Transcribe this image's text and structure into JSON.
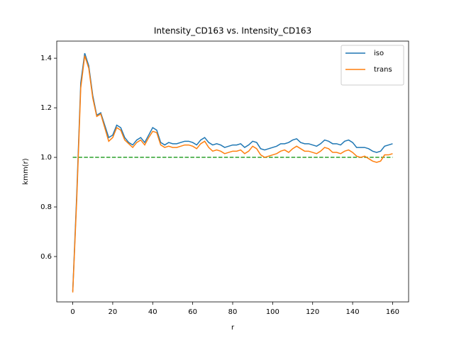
{
  "chart_data": {
    "type": "line",
    "title": "Intensity_CD163 vs. Intensity_CD163",
    "x_label": "r",
    "y_label": "kmm(r)",
    "x": [
      0,
      2,
      4,
      6,
      8,
      10,
      12,
      14,
      16,
      18,
      20,
      22,
      24,
      26,
      28,
      30,
      32,
      34,
      36,
      38,
      40,
      42,
      44,
      46,
      48,
      50,
      52,
      54,
      56,
      58,
      60,
      62,
      64,
      66,
      68,
      70,
      72,
      74,
      76,
      78,
      80,
      82,
      84,
      86,
      88,
      90,
      92,
      94,
      96,
      98,
      100,
      102,
      104,
      106,
      108,
      110,
      112,
      114,
      116,
      118,
      120,
      122,
      124,
      126,
      128,
      130,
      132,
      134,
      136,
      138,
      140,
      142,
      144,
      146,
      148,
      150,
      152,
      154,
      156,
      158,
      160
    ],
    "series": [
      {
        "name": "iso",
        "color": "#1f77b4",
        "values": [
          0.46,
          0.85,
          1.3,
          1.42,
          1.37,
          1.25,
          1.17,
          1.18,
          1.13,
          1.08,
          1.09,
          1.13,
          1.12,
          1.08,
          1.06,
          1.05,
          1.07,
          1.08,
          1.06,
          1.09,
          1.12,
          1.11,
          1.06,
          1.05,
          1.06,
          1.055,
          1.055,
          1.06,
          1.065,
          1.065,
          1.06,
          1.05,
          1.07,
          1.08,
          1.06,
          1.05,
          1.055,
          1.05,
          1.04,
          1.045,
          1.05,
          1.05,
          1.055,
          1.04,
          1.05,
          1.065,
          1.06,
          1.035,
          1.03,
          1.035,
          1.04,
          1.045,
          1.055,
          1.055,
          1.06,
          1.07,
          1.075,
          1.06,
          1.055,
          1.055,
          1.05,
          1.045,
          1.055,
          1.07,
          1.065,
          1.055,
          1.055,
          1.05,
          1.065,
          1.07,
          1.06,
          1.04,
          1.04,
          1.04,
          1.035,
          1.025,
          1.02,
          1.025,
          1.045,
          1.05,
          1.055
        ]
      },
      {
        "name": "trans",
        "color": "#ff7f0e",
        "values": [
          0.455,
          0.83,
          1.28,
          1.41,
          1.36,
          1.24,
          1.165,
          1.175,
          1.12,
          1.065,
          1.08,
          1.12,
          1.11,
          1.07,
          1.055,
          1.04,
          1.06,
          1.07,
          1.05,
          1.08,
          1.105,
          1.1,
          1.05,
          1.04,
          1.045,
          1.04,
          1.04,
          1.045,
          1.05,
          1.05,
          1.045,
          1.035,
          1.055,
          1.065,
          1.04,
          1.025,
          1.03,
          1.025,
          1.015,
          1.02,
          1.025,
          1.025,
          1.03,
          1.015,
          1.025,
          1.045,
          1.035,
          1.01,
          1.0,
          1.005,
          1.01,
          1.015,
          1.025,
          1.03,
          1.02,
          1.035,
          1.045,
          1.035,
          1.025,
          1.025,
          1.02,
          1.015,
          1.025,
          1.04,
          1.035,
          1.02,
          1.02,
          1.015,
          1.025,
          1.03,
          1.02,
          1.005,
          1.0,
          1.005,
          0.995,
          0.985,
          0.98,
          0.985,
          1.01,
          1.01,
          1.015
        ]
      }
    ],
    "reference_line": {
      "x": [
        0,
        160
      ],
      "values": [
        1,
        1
      ],
      "color": "#2ca02c",
      "style": "dashed"
    },
    "xlim": [
      -8,
      168
    ],
    "ylim": [
      0.417,
      1.469
    ],
    "xticks": [
      0,
      20,
      40,
      60,
      80,
      100,
      120,
      140,
      160
    ],
    "yticks": [
      0.6,
      0.8,
      {
        "value": 1,
        "label": "1.0"
      },
      1.2,
      1.4
    ],
    "legend": "upper right"
  }
}
